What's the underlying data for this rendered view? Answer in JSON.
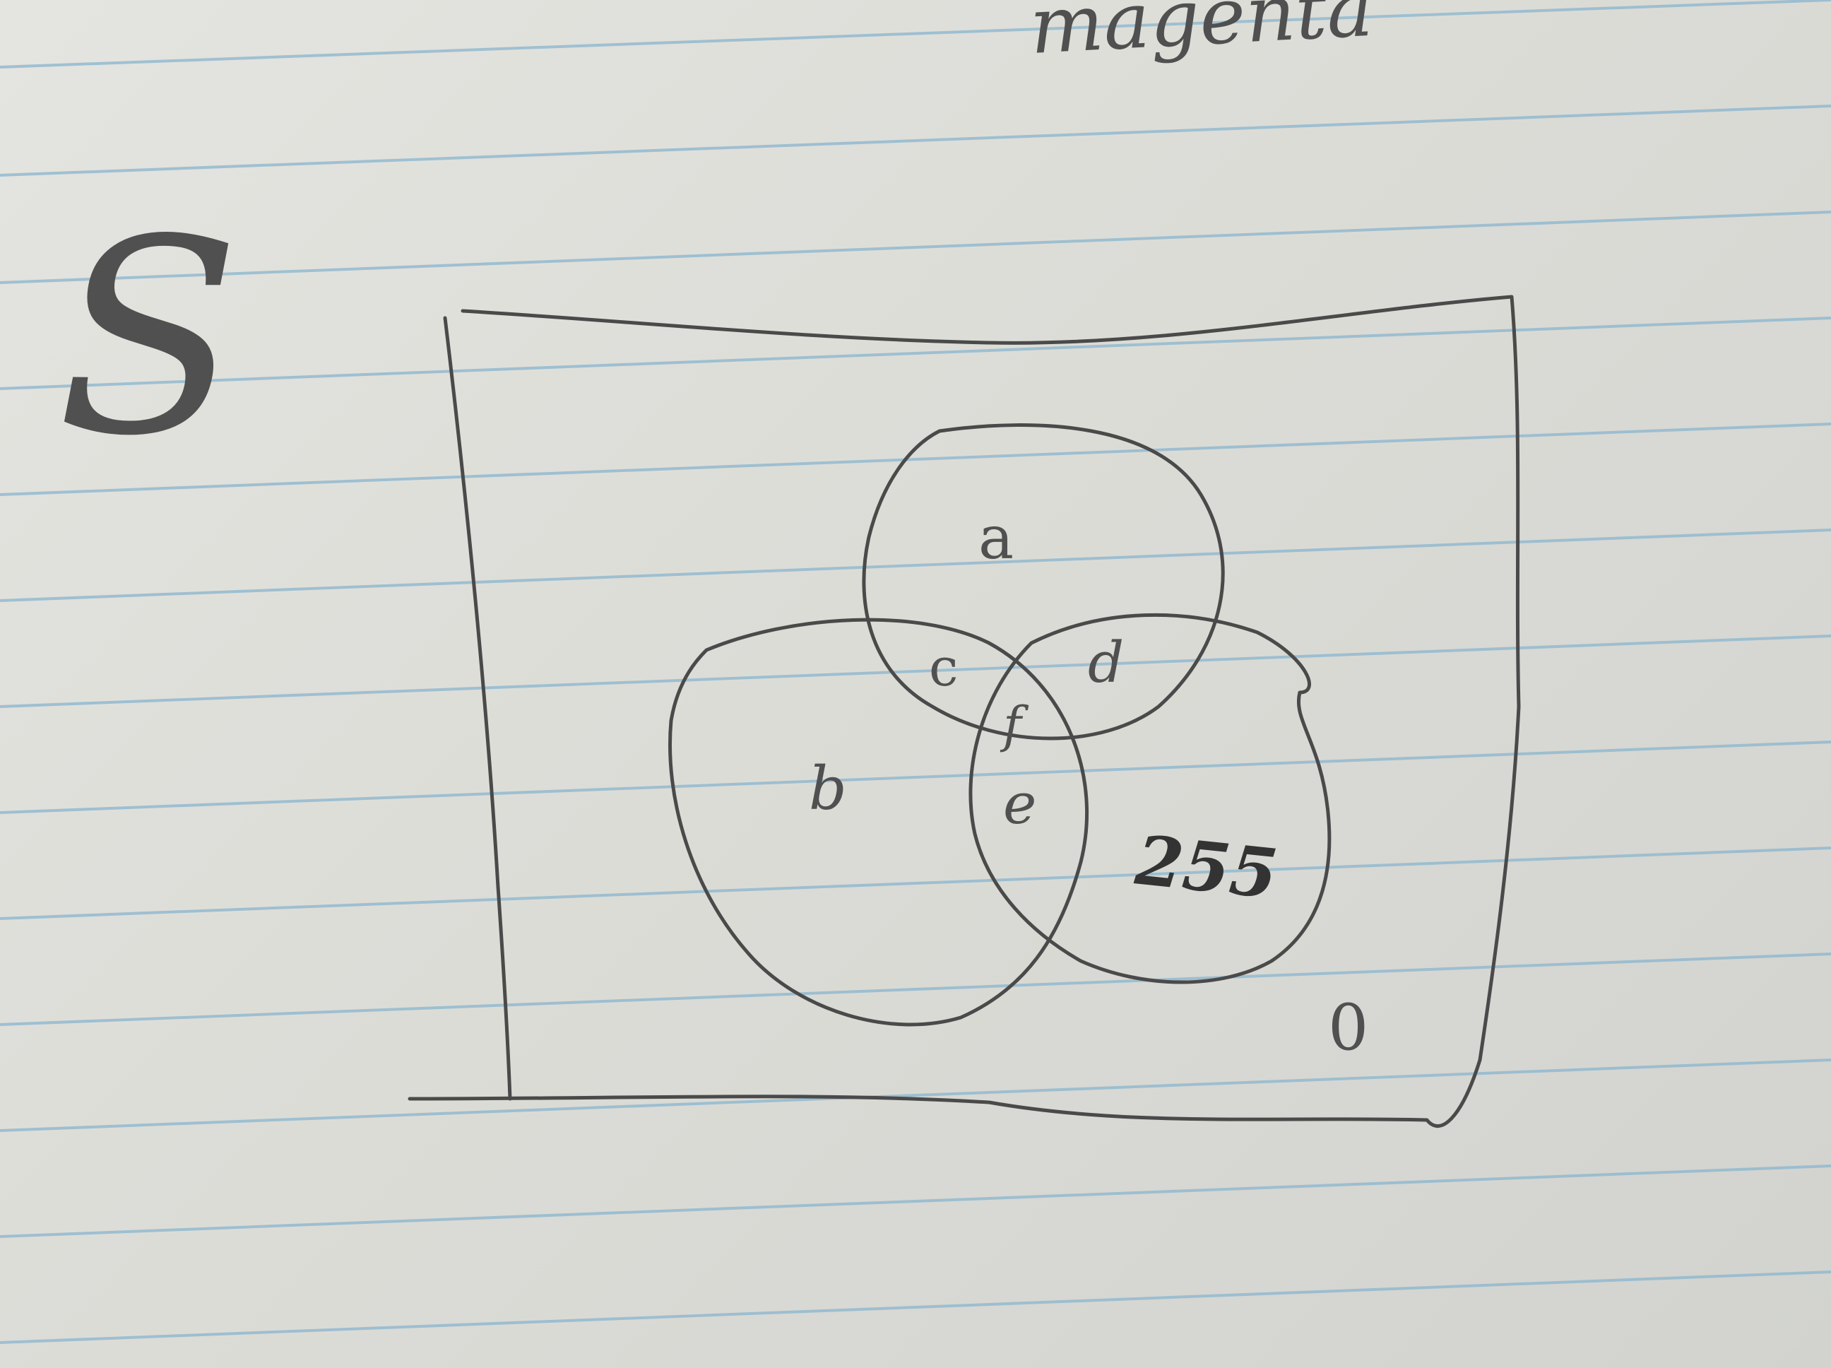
{
  "header": {
    "top_word": "magenta",
    "set_label": "S"
  },
  "diagram": {
    "regions": {
      "a": "a",
      "b": "b",
      "c": "c",
      "d": "d",
      "e": "e",
      "f": "f",
      "third_circle_only": "255",
      "outside": "0"
    }
  },
  "colors": {
    "ink": "#4a4a4a",
    "paper": "#dcdcd8",
    "rule": "#8fb8cf"
  }
}
